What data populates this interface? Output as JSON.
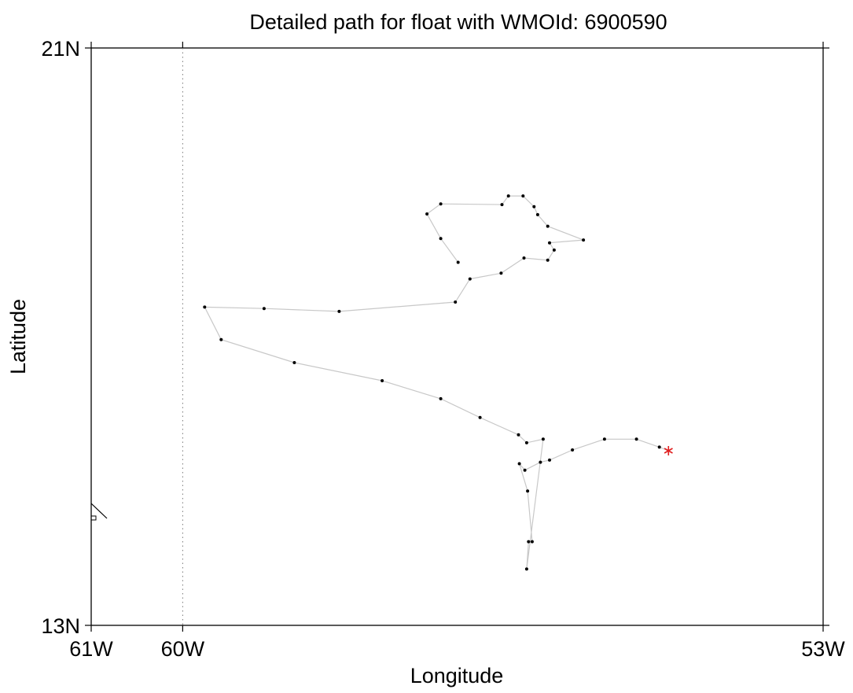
{
  "title": "Detailed path for float with WMOId: 6900590",
  "axes": {
    "xlabel": "Longitude",
    "ylabel": "Latitude",
    "xlim": [
      -61,
      -53
    ],
    "ylim": [
      13,
      21
    ],
    "x_ticks": [
      {
        "value": -61,
        "label": "61W"
      },
      {
        "value": -60,
        "label": "60W"
      },
      {
        "value": -53,
        "label": "53W"
      }
    ],
    "y_ticks": [
      {
        "value": 21,
        "label": "21N"
      },
      {
        "value": 13,
        "label": "13N"
      }
    ],
    "gridline_lon": -60
  },
  "colors": {
    "path": "#c8c8c8",
    "point": "#000000",
    "latest_marker": "#e02020"
  },
  "chart_data": {
    "type": "scatter",
    "title": "Detailed path for float with WMOId: 6900590",
    "xlabel": "Longitude",
    "ylabel": "Latitude",
    "xlim": [
      -61,
      -53
    ],
    "ylim": [
      13,
      21
    ],
    "series": [
      {
        "name": "",
        "lon": [
          -54.79,
          -55.04,
          -55.39,
          -55.74,
          -55.99,
          -56.09,
          -56.26,
          -56.32,
          -56.23,
          -56.18,
          -56.22,
          -56.24,
          -56.06,
          -56.24,
          -56.33,
          -56.75,
          -57.18,
          -57.82,
          -58.78,
          -59.58,
          -59.76,
          -59.11,
          -58.29,
          -57.02,
          -56.86,
          -56.52,
          -56.27,
          -56.01,
          -55.94,
          -55.99,
          -55.62,
          -56.01,
          -56.12,
          -56.16,
          -56.28,
          -56.44,
          -56.51,
          -57.18,
          -57.33,
          -57.18,
          -56.99
        ],
        "lat": [
          15.47,
          15.58,
          15.58,
          15.43,
          15.29,
          15.26,
          15.15,
          15.24,
          14.86,
          14.16,
          14.16,
          13.78,
          15.58,
          15.53,
          15.64,
          15.88,
          16.14,
          16.39,
          16.64,
          16.96,
          17.41,
          17.39,
          17.35,
          17.48,
          17.8,
          17.88,
          18.09,
          18.06,
          18.2,
          18.3,
          18.34,
          18.53,
          18.69,
          18.8,
          18.95,
          18.95,
          18.83,
          18.84,
          18.7,
          18.36,
          18.03
        ]
      }
    ],
    "latest_position": {
      "lon": -54.69,
      "lat": 15.42
    },
    "grid": false,
    "legend": "none"
  }
}
